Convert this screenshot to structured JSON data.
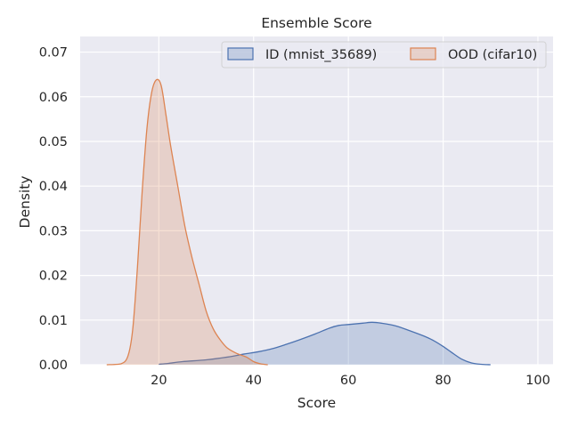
{
  "chart_data": {
    "type": "area",
    "title": "Ensemble Score",
    "xlabel": "Score",
    "ylabel": "Density",
    "xlim": [
      3.4,
      103.2
    ],
    "ylim": [
      0,
      0.0735
    ],
    "xticks": [
      "20",
      "40",
      "60",
      "80",
      "100"
    ],
    "xtick_values": [
      20,
      40,
      60,
      80,
      100
    ],
    "yticks": [
      "0.00",
      "0.01",
      "0.02",
      "0.03",
      "0.04",
      "0.05",
      "0.06",
      "0.07"
    ],
    "ytick_values": [
      0,
      0.01,
      0.02,
      0.03,
      0.04,
      0.05,
      0.06,
      0.07
    ],
    "grid": true,
    "legend_position": "top-right",
    "series": [
      {
        "name": "ID (mnist_35689)",
        "color": "#4c72b0",
        "points": [
          [
            20,
            0.0001
          ],
          [
            22,
            0.0003
          ],
          [
            25,
            0.0007
          ],
          [
            30,
            0.0011
          ],
          [
            35,
            0.0018
          ],
          [
            38,
            0.0024
          ],
          [
            41,
            0.0029
          ],
          [
            44,
            0.0036
          ],
          [
            47,
            0.0046
          ],
          [
            50,
            0.0057
          ],
          [
            53,
            0.0069
          ],
          [
            56,
            0.0082
          ],
          [
            58,
            0.0088
          ],
          [
            60,
            0.009
          ],
          [
            63,
            0.0093
          ],
          [
            65,
            0.0095
          ],
          [
            67,
            0.0093
          ],
          [
            70,
            0.0087
          ],
          [
            73,
            0.0076
          ],
          [
            76,
            0.0064
          ],
          [
            78,
            0.0054
          ],
          [
            80,
            0.0041
          ],
          [
            82,
            0.0026
          ],
          [
            84,
            0.0012
          ],
          [
            86,
            0.0004
          ],
          [
            88,
            0.0001
          ],
          [
            90,
            0.0
          ]
        ]
      },
      {
        "name": "OOD (cifar10)",
        "color": "#dd8452",
        "points": [
          [
            9,
            0.0
          ],
          [
            12,
            0.0002
          ],
          [
            13.5,
            0.002
          ],
          [
            14.5,
            0.008
          ],
          [
            15.5,
            0.022
          ],
          [
            16.5,
            0.039
          ],
          [
            17.5,
            0.053
          ],
          [
            18.5,
            0.061
          ],
          [
            19.5,
            0.0638
          ],
          [
            20.5,
            0.0625
          ],
          [
            21.5,
            0.056
          ],
          [
            22.5,
            0.049
          ],
          [
            24,
            0.04
          ],
          [
            25.5,
            0.031
          ],
          [
            27,
            0.024
          ],
          [
            28.5,
            0.018
          ],
          [
            30,
            0.012
          ],
          [
            31.5,
            0.008
          ],
          [
            33,
            0.0055
          ],
          [
            34.5,
            0.0037
          ],
          [
            36.5,
            0.0025
          ],
          [
            38.5,
            0.0017
          ],
          [
            40,
            0.0007
          ],
          [
            41.5,
            0.0002
          ],
          [
            43,
            0.0
          ]
        ]
      }
    ]
  }
}
